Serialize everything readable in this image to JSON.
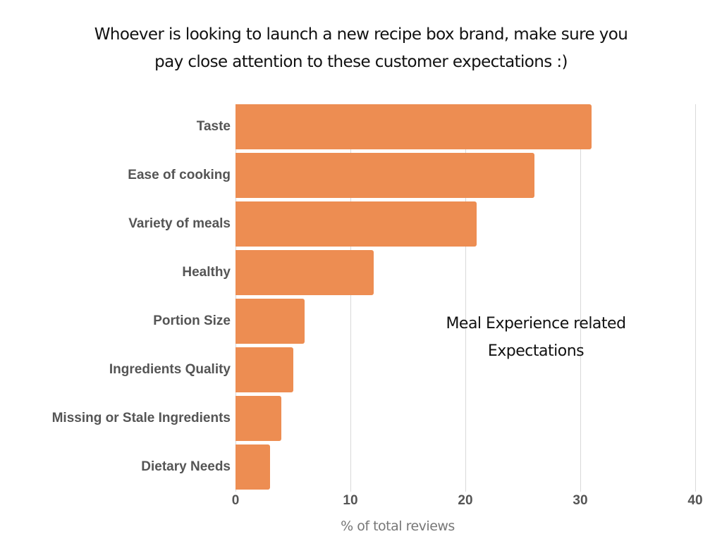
{
  "chart_data": {
    "type": "bar",
    "orientation": "horizontal",
    "title": "Whoever is looking to launch a new recipe box brand, make sure you pay close attention to these customer expectations :)",
    "title_lines": [
      "Whoever is looking to launch a new recipe box brand, make sure you",
      "pay close attention to these customer expectations :)"
    ],
    "categories": [
      "Taste",
      "Ease of cooking",
      "Variety of meals",
      "Healthy",
      "Portion Size",
      "Ingredients Quality",
      "Missing or Stale Ingredients",
      "Dietary Needs"
    ],
    "values": [
      31,
      26,
      21,
      12,
      6,
      5,
      4,
      3
    ],
    "xlabel": "% of total reviews",
    "ylabel": "",
    "xlim": [
      0,
      40
    ],
    "xticks": [
      "0",
      "10",
      "20",
      "30",
      "40"
    ],
    "grid": true,
    "bar_color": "#ed8d52",
    "annotation": [
      "Meal Experience related",
      "Expectations"
    ],
    "legend": null
  }
}
